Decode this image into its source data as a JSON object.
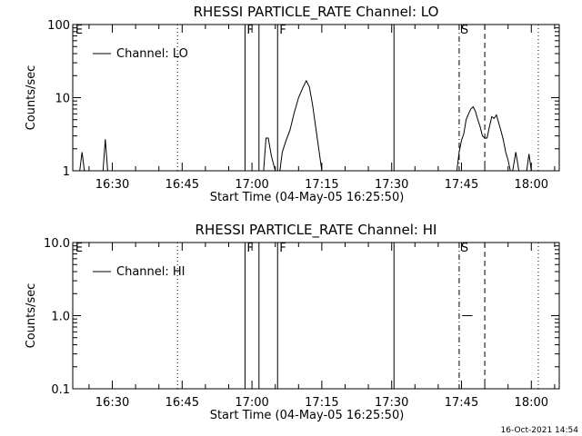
{
  "stamp": "16-Oct-2021 14:54",
  "chart_data": [
    {
      "type": "line",
      "title": "RHESSI PARTICLE_RATE Channel: LO",
      "xlabel": "Start Time (04-May-05 16:25:50)",
      "ylabel": "Counts/sec",
      "yscale": "log",
      "ylim": [
        1,
        100
      ],
      "xlim": [
        "16:21:30",
        "18:06:00"
      ],
      "yticks": [
        "1",
        "10",
        "100"
      ],
      "xticks": [
        "16:30",
        "16:45",
        "17:00",
        "17:15",
        "17:30",
        "17:45",
        "18:00"
      ],
      "legend": {
        "placement": "top-left",
        "label": "Channel: LO"
      },
      "markers": [
        {
          "time": "16:21:40",
          "label": "E",
          "style": "none"
        },
        {
          "time": "16:44:00",
          "style": "dotted"
        },
        {
          "time": "16:58:30",
          "label": "F",
          "style": "solid"
        },
        {
          "time": "17:01:30",
          "style": "solid"
        },
        {
          "time": "17:05:30",
          "label": "F",
          "style": "solid"
        },
        {
          "time": "17:30:30",
          "style": "solid"
        },
        {
          "time": "17:44:30",
          "label": "S",
          "style": "dashdot"
        },
        {
          "time": "17:50:00",
          "style": "dashed"
        },
        {
          "time": "18:01:30",
          "style": "dotted"
        }
      ],
      "series": [
        {
          "name": "Channel: LO",
          "segments": [
            [
              [
                "16:23:00",
                1
              ],
              [
                "16:23:30",
                1.8
              ],
              [
                "16:24:00",
                1
              ]
            ],
            [
              [
                "16:28:00",
                1
              ],
              [
                "16:28:30",
                2.7
              ],
              [
                "16:29:00",
                1
              ]
            ],
            [
              [
                "17:02:30",
                1
              ],
              [
                "17:03:00",
                2.8
              ],
              [
                "17:03:30",
                2.8
              ],
              [
                "17:04:10",
                1.6
              ],
              [
                "17:05:00",
                1
              ]
            ],
            [
              [
                "17:06:00",
                1
              ],
              [
                "17:06:30",
                1.8
              ],
              [
                "17:07:20",
                2.6
              ],
              [
                "17:08:10",
                3.6
              ],
              [
                "17:09:00",
                6
              ],
              [
                "17:10:00",
                10
              ],
              [
                "17:11:00",
                14
              ],
              [
                "17:11:40",
                17
              ],
              [
                "17:12:20",
                14
              ],
              [
                "17:13:00",
                8
              ],
              [
                "17:13:40",
                4
              ],
              [
                "17:14:20",
                2
              ],
              [
                "17:15:00",
                1
              ]
            ],
            [
              [
                "17:44:00",
                1
              ],
              [
                "17:44:30",
                1.8
              ],
              [
                "17:45:00",
                2.6
              ],
              [
                "17:45:30",
                3.2
              ],
              [
                "17:46:00",
                5
              ],
              [
                "17:46:30",
                6
              ],
              [
                "17:47:00",
                7
              ],
              [
                "17:47:30",
                7.5
              ],
              [
                "17:48:00",
                6.5
              ],
              [
                "17:48:30",
                5
              ],
              [
                "17:49:00",
                4
              ],
              [
                "17:49:30",
                3
              ],
              [
                "17:50:00",
                2.8
              ],
              [
                "17:50:30",
                2.8
              ],
              [
                "17:51:00",
                4
              ],
              [
                "17:51:30",
                5.5
              ],
              [
                "17:52:00",
                5.2
              ],
              [
                "17:52:30",
                5.8
              ],
              [
                "17:53:00",
                4.5
              ],
              [
                "17:53:30",
                3.5
              ],
              [
                "17:54:00",
                2.6
              ],
              [
                "17:54:30",
                1.8
              ],
              [
                "17:55:00",
                1.4
              ],
              [
                "17:55:30",
                1
              ]
            ],
            [
              [
                "17:56:00",
                1
              ],
              [
                "17:56:40",
                1.8
              ],
              [
                "17:57:20",
                1
              ]
            ],
            [
              [
                "17:59:00",
                1
              ],
              [
                "17:59:30",
                1.7
              ],
              [
                "18:00:00",
                1
              ]
            ]
          ]
        }
      ]
    },
    {
      "type": "line",
      "title": "RHESSI PARTICLE_RATE Channel: HI",
      "xlabel": "Start Time (04-May-05 16:25:50)",
      "ylabel": "Counts/sec",
      "yscale": "log",
      "ylim": [
        0.1,
        10
      ],
      "xlim": [
        "16:21:30",
        "18:06:00"
      ],
      "yticks": [
        "0.1",
        "1.0",
        "10.0"
      ],
      "xticks": [
        "16:30",
        "16:45",
        "17:00",
        "17:15",
        "17:30",
        "17:45",
        "18:00"
      ],
      "legend": {
        "placement": "top-left",
        "label": "Channel: HI"
      },
      "markers": [
        {
          "time": "16:21:40",
          "label": "E",
          "style": "none"
        },
        {
          "time": "16:44:00",
          "style": "dotted"
        },
        {
          "time": "16:58:30",
          "label": "F",
          "style": "solid"
        },
        {
          "time": "17:01:30",
          "style": "solid"
        },
        {
          "time": "17:05:30",
          "label": "F",
          "style": "solid"
        },
        {
          "time": "17:30:30",
          "style": "solid"
        },
        {
          "time": "17:44:30",
          "label": "S",
          "style": "dashdot"
        },
        {
          "time": "17:50:00",
          "style": "dashed"
        },
        {
          "time": "18:01:30",
          "style": "dotted"
        }
      ],
      "series": [
        {
          "name": "Channel: HI",
          "segments": [
            [
              [
                "17:45:10",
                1
              ],
              [
                "17:47:20",
                1
              ]
            ]
          ]
        }
      ]
    }
  ]
}
